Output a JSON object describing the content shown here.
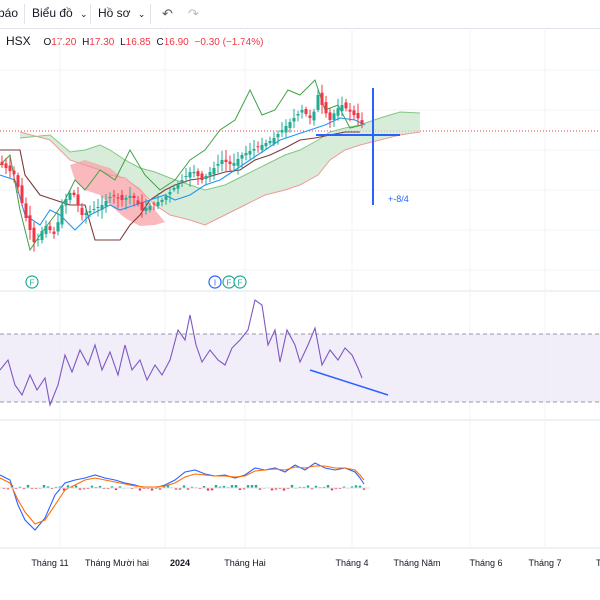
{
  "toolbar": {
    "item1": "báo",
    "item2": "Biểu đồ",
    "item3": "Hồ sơ",
    "undo_icon": "undo-icon",
    "redo_icon": "redo-icon"
  },
  "legend": {
    "exchange": "HSX",
    "o_label": "O",
    "o_value": "17.20",
    "h_label": "H",
    "h_value": "17.30",
    "l_label": "L",
    "l_value": "16.85",
    "c_label": "C",
    "c_value": "16.90",
    "change": "−0.30 (−1.74%)"
  },
  "annotation": {
    "label": "+-8/4"
  },
  "event_markers": [
    "F",
    "I",
    "F",
    "F"
  ],
  "x_axis": {
    "labels": [
      "Tháng 11",
      "Tháng Mười hai",
      "2024",
      "Tháng Hai",
      "Tháng 4",
      "Tháng Năm",
      "Tháng 6",
      "Tháng 7",
      "Th"
    ]
  },
  "colors": {
    "up": "#22ab94",
    "down": "#f23645",
    "rsi": "#7e57c2",
    "macd": "#2962ff",
    "signal": "#ff6d00",
    "cloud_up": "#c8e6c9",
    "cloud_down": "#f7a8ad",
    "baseline": "#7b3b3b",
    "draw": "#2962ff"
  }
}
